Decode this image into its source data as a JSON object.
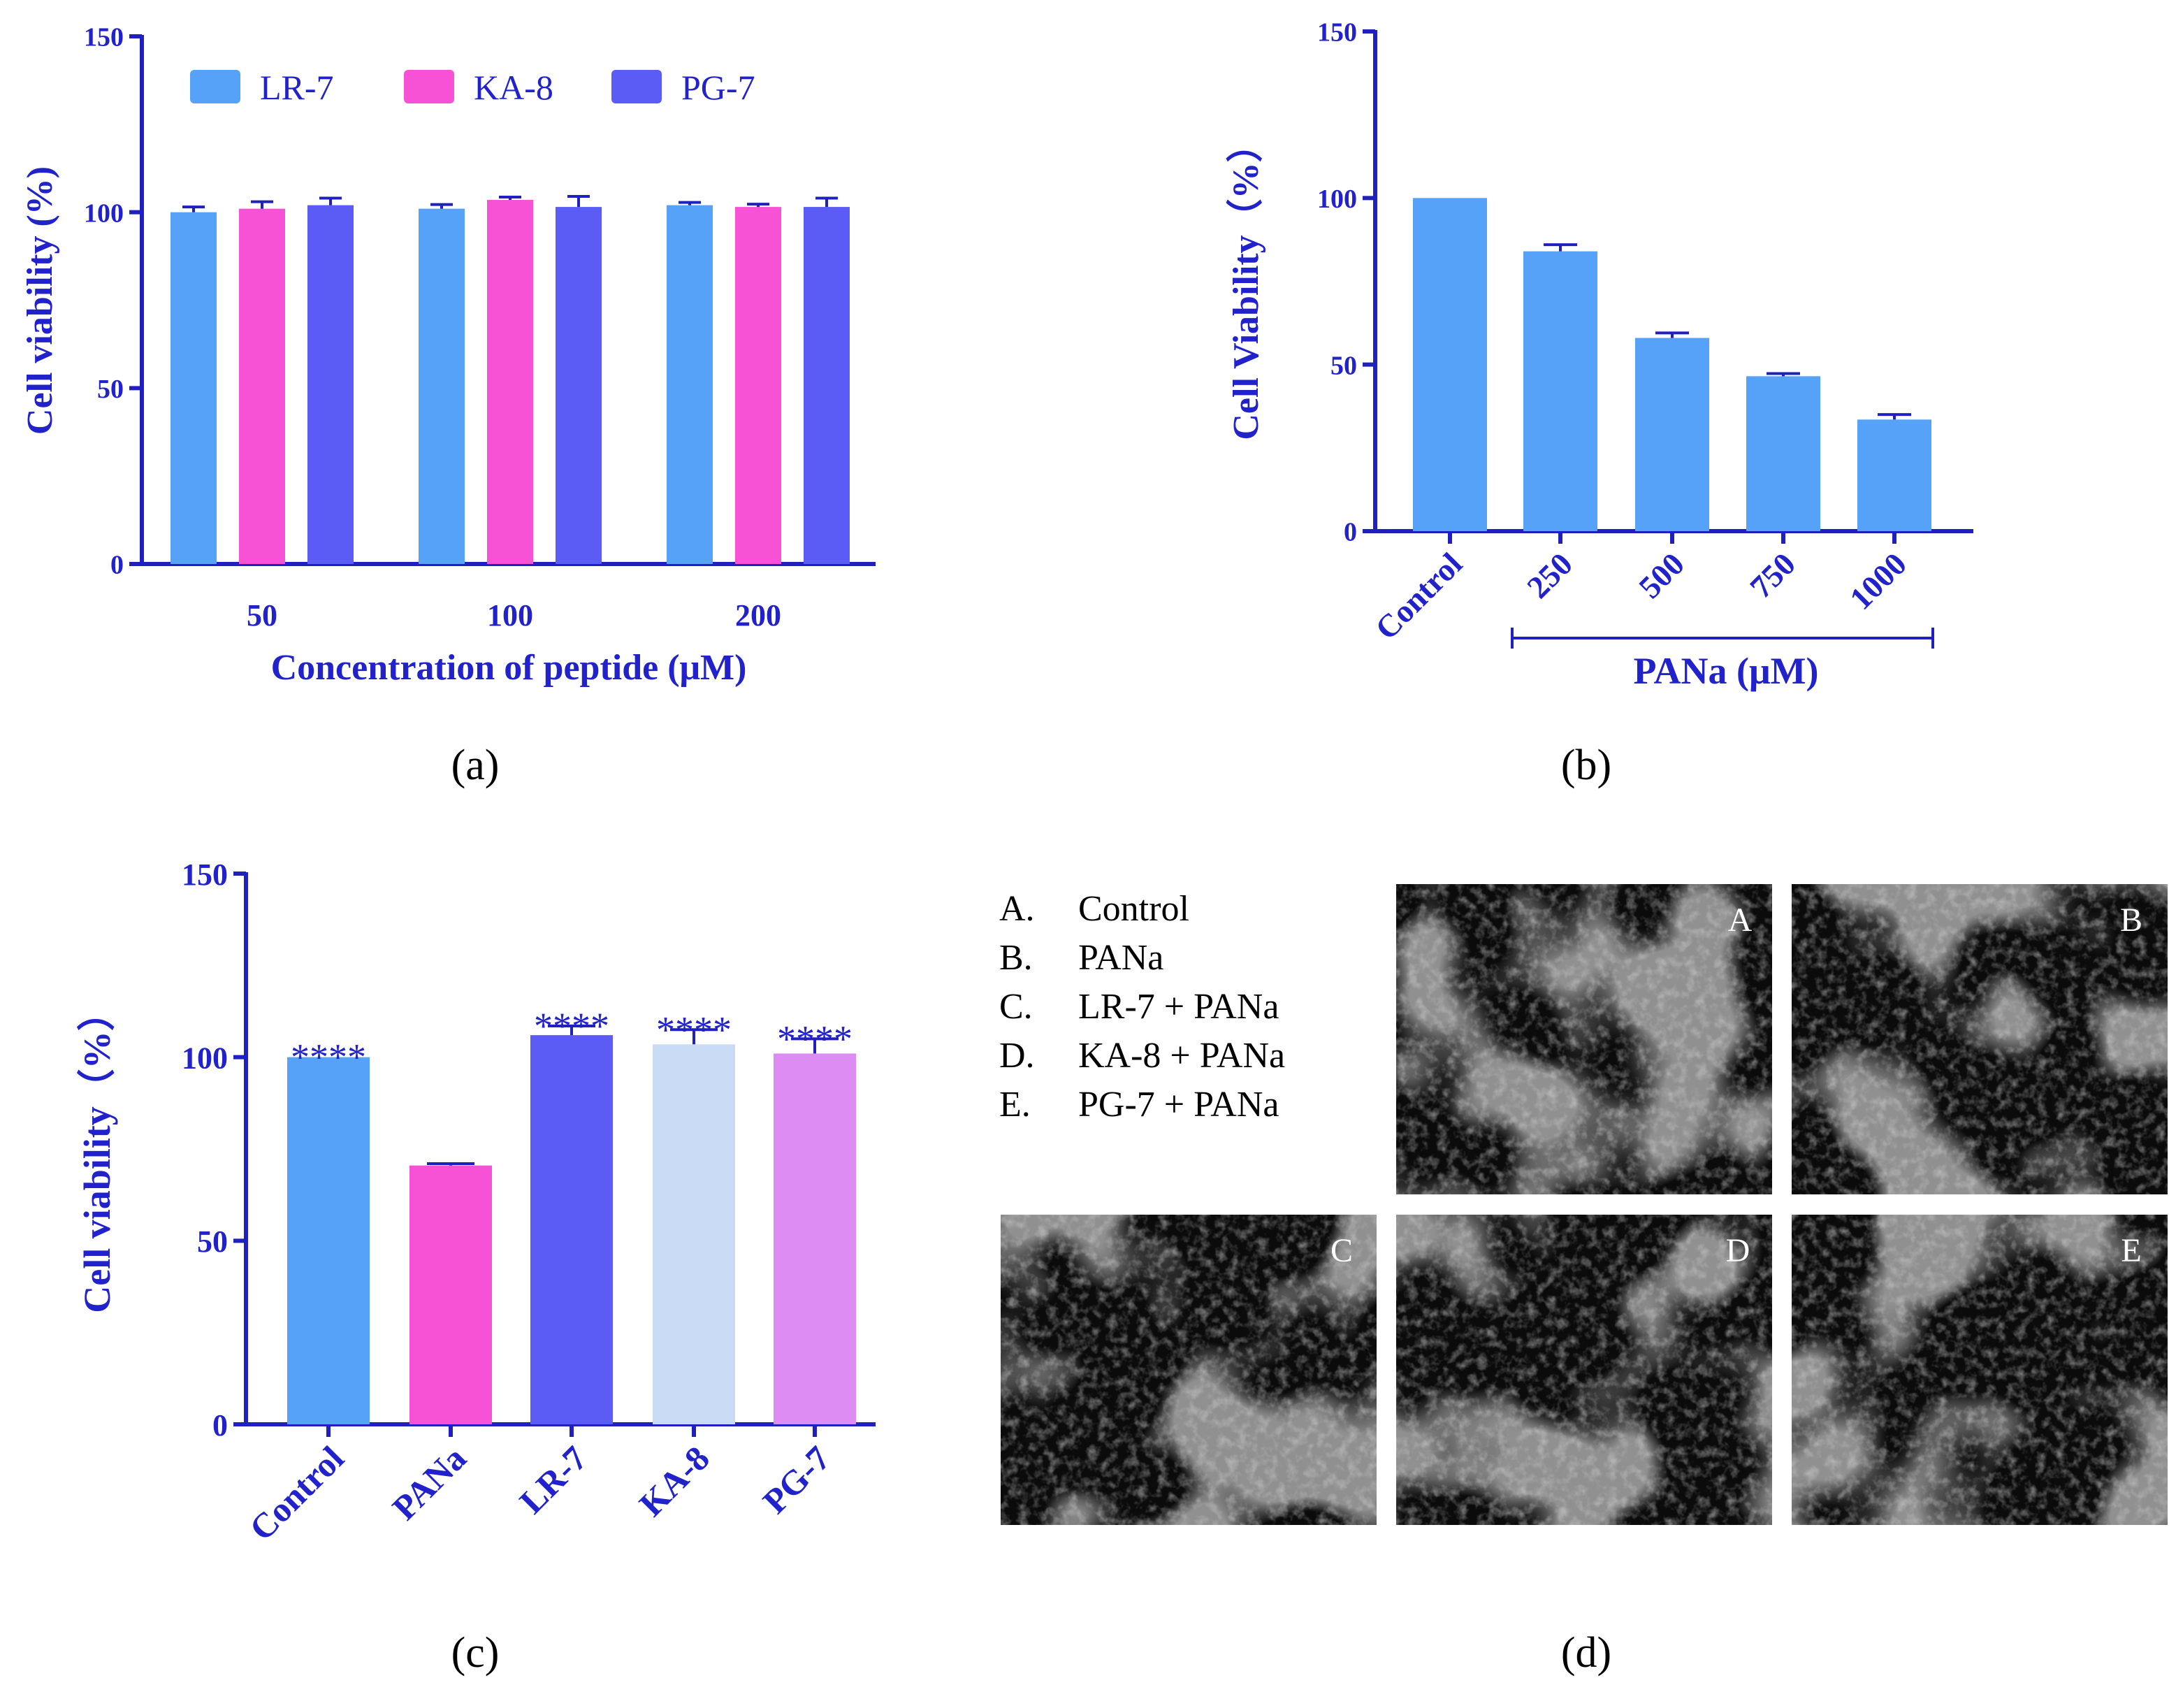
{
  "colors": {
    "axis": "#2020c0",
    "text": "#2222cc",
    "lr7": "#55a2f8",
    "ka8": "#f752d6",
    "pg7": "#5b5bf6",
    "ka8_light": "#c9dbf5",
    "pg7_light": "#dc8cf2",
    "bar_b": "#55a2f8"
  },
  "chart_data": [
    {
      "id": "a",
      "type": "bar",
      "panel_label": "(a)",
      "title": "",
      "xlabel": "Concentration of peptide (μM)",
      "ylabel": "Cell viability (%)",
      "ylim": [
        0,
        150
      ],
      "yticks": [
        "0",
        "50",
        "100",
        "150"
      ],
      "categories": [
        "50",
        "100",
        "200"
      ],
      "series": [
        {
          "name": "LR-7",
          "color": "#55a2f8",
          "values": [
            100,
            101,
            102
          ],
          "errors": [
            1.5,
            1.2,
            0.8
          ]
        },
        {
          "name": "KA-8",
          "color": "#f752d6",
          "values": [
            101,
            103.5,
            101.5
          ],
          "errors": [
            2,
            0.8,
            0.8
          ]
        },
        {
          "name": "PG-7",
          "color": "#5b5bf6",
          "values": [
            102,
            101.5,
            101.5
          ],
          "errors": [
            2,
            3,
            2.5
          ]
        }
      ],
      "legend_position": "top-left"
    },
    {
      "id": "b",
      "type": "bar",
      "panel_label": "(b)",
      "title": "",
      "xlabel": "PANa (μM)",
      "ylabel": "Cell Viability（%）",
      "ylim": [
        0,
        150
      ],
      "yticks": [
        "0",
        "50",
        "100",
        "150"
      ],
      "categories": [
        "Control",
        "250",
        "500",
        "750",
        "1000"
      ],
      "values": [
        100,
        84,
        58,
        46.5,
        33.5
      ],
      "errors": [
        0,
        2,
        1.5,
        0.8,
        1.5
      ],
      "color": "#55a2f8"
    },
    {
      "id": "c",
      "type": "bar",
      "panel_label": "(c)",
      "title": "",
      "xlabel": "",
      "ylabel": "Cell viability（%）",
      "ylim": [
        0,
        150
      ],
      "yticks": [
        "0",
        "50",
        "100",
        "150"
      ],
      "categories": [
        "Control",
        "PANa",
        "LR-7",
        "KA-8",
        "PG-7"
      ],
      "values": [
        100,
        70.5,
        106,
        103.5,
        101
      ],
      "errors": [
        0,
        0.5,
        2.5,
        4,
        4
      ],
      "colors": [
        "#55a2f8",
        "#f752d6",
        "#5b5bf6",
        "#c9dbf5",
        "#dc8cf2"
      ],
      "annotations": [
        "****",
        "",
        "****",
        "****",
        "****"
      ]
    }
  ],
  "panel_d": {
    "panel_label": "(d)",
    "conditions": [
      {
        "letter": "A.",
        "text": "Control"
      },
      {
        "letter": "B.",
        "text": "PANa"
      },
      {
        "letter": "C.",
        "text": "LR-7 + PANa"
      },
      {
        "letter": "D.",
        "text": "KA-8 + PANa"
      },
      {
        "letter": "E.",
        "text": "PG-7 + PANa"
      }
    ],
    "image_labels": [
      "A",
      "B",
      "C",
      "D",
      "E"
    ]
  }
}
